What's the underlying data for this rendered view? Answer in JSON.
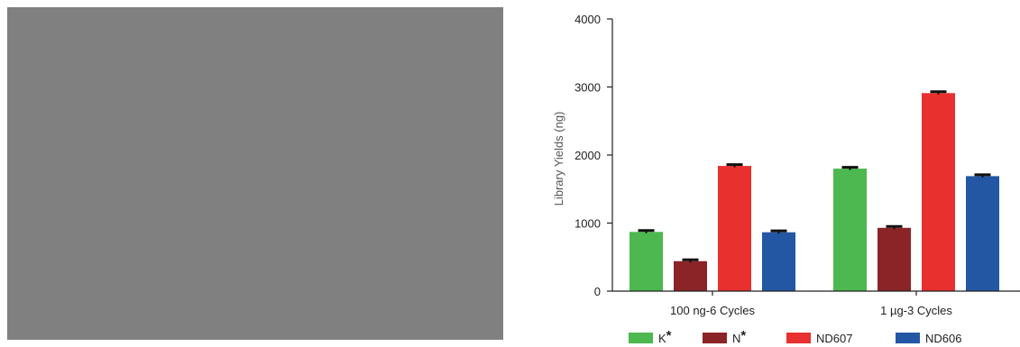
{
  "colors": {
    "placeholder_panel": "#808080",
    "axis": "#222222",
    "error_bar": "#111111"
  },
  "chart_data": {
    "type": "bar",
    "ylabel": "Library Yields (ng)",
    "xlabel": "",
    "ylim": [
      0,
      4000
    ],
    "yticks": [
      0,
      1000,
      2000,
      3000,
      4000
    ],
    "ytick_labels": [
      "0",
      "1000",
      "2000",
      "3000",
      "4000"
    ],
    "categories": [
      "100 ng-6 Cycles",
      "1 µg-3 Cycles"
    ],
    "legend_position": "bottom",
    "series": [
      {
        "name": "K*",
        "label_text": "K",
        "label_mark": "*",
        "color": "#4CB84F",
        "values": [
          870,
          1800
        ],
        "errors": [
          20,
          20
        ]
      },
      {
        "name": "N*",
        "label_text": "N",
        "label_mark": "*",
        "color": "#8B2427",
        "values": [
          440,
          930
        ],
        "errors": [
          20,
          20
        ]
      },
      {
        "name": "ND607",
        "label_text": "ND607",
        "label_mark": "",
        "color": "#E8312F",
        "values": [
          1840,
          2910
        ],
        "errors": [
          20,
          20
        ]
      },
      {
        "name": "ND606",
        "label_text": "ND606",
        "label_mark": "",
        "color": "#2457A3",
        "values": [
          865,
          1690
        ],
        "errors": [
          20,
          20
        ]
      }
    ]
  }
}
